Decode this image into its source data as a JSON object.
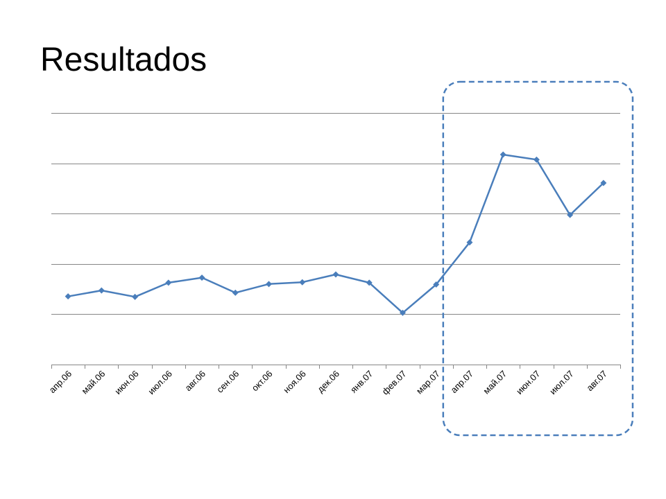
{
  "slide": {
    "title": "Resultados"
  },
  "chart_data": {
    "type": "line",
    "title": "",
    "xlabel": "",
    "ylabel": "",
    "categories": [
      "апр.06",
      "май.06",
      "июн.06",
      "июл.06",
      "авг.06",
      "сен.06",
      "окт.06",
      "ноя.06",
      "дек.06",
      "янв.07",
      "фев.07",
      "мар.07",
      "апр.07",
      "май.07",
      "июн.07",
      "июл.07",
      "авг.07"
    ],
    "series": [
      {
        "values": [
          0.99,
          1.12,
          0.98,
          1.29,
          1.4,
          1.07,
          1.26,
          1.3,
          1.47,
          1.29,
          0.63,
          1.25,
          2.17,
          4.09,
          3.98,
          2.77,
          3.47
        ]
      }
    ],
    "ylim": [
      -0.5,
      5.0
    ],
    "yticks_shown": false,
    "grid": true,
    "legend": "none",
    "highlight": {
      "style": "dashed rounded box",
      "from_category": "апр.07",
      "to_category": "авг.07"
    },
    "colors": {
      "line": "#4a7ebb",
      "marker": "#4a7ebb",
      "grid": "#868686",
      "highlight": "#4a7ebb"
    }
  }
}
